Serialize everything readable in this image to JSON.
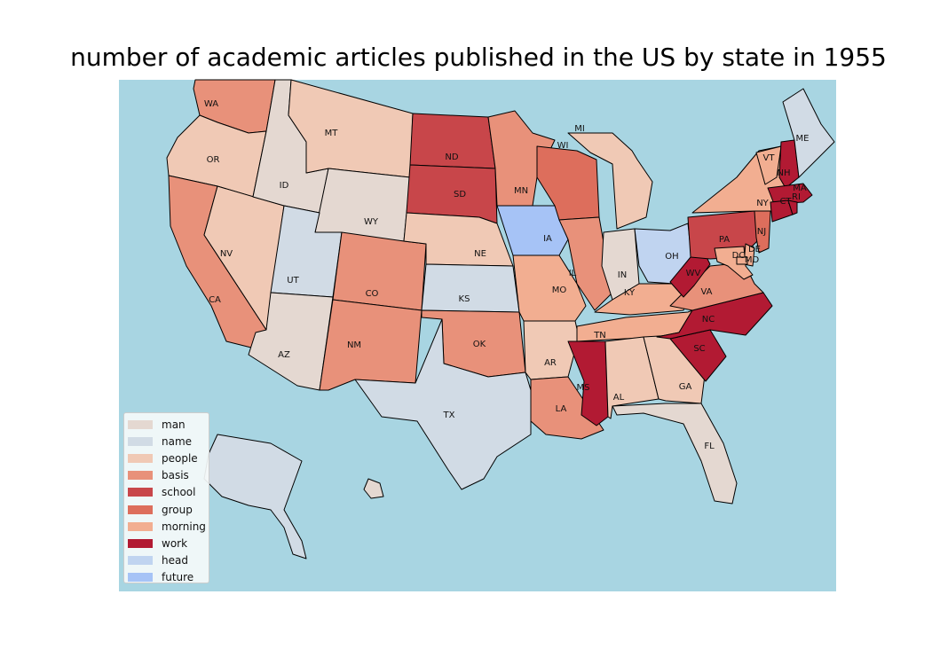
{
  "title": "number of academic articles published in the US by state in 1955",
  "colors": {
    "ocean": "#a8d5e2",
    "man": "#e4d8d1",
    "name": "#d1dbe5",
    "people": "#f0c9b5",
    "basis": "#e8917a",
    "school": "#c8464a",
    "group": "#dd6e5c",
    "morning": "#f2ae91",
    "work": "#b21a33",
    "head": "#c0d4f0",
    "future": "#a6c3f6"
  },
  "legend": [
    {
      "key": "man",
      "label": "man"
    },
    {
      "key": "name",
      "label": "name"
    },
    {
      "key": "people",
      "label": "people"
    },
    {
      "key": "basis",
      "label": "basis"
    },
    {
      "key": "school",
      "label": "school"
    },
    {
      "key": "group",
      "label": "group"
    },
    {
      "key": "morning",
      "label": "morning"
    },
    {
      "key": "work",
      "label": "work"
    },
    {
      "key": "head",
      "label": "head"
    },
    {
      "key": "future",
      "label": "future"
    }
  ],
  "states": [
    {
      "abbr": "WA",
      "category": "basis"
    },
    {
      "abbr": "OR",
      "category": "people"
    },
    {
      "abbr": "CA",
      "category": "basis"
    },
    {
      "abbr": "NV",
      "category": "people"
    },
    {
      "abbr": "ID",
      "category": "man"
    },
    {
      "abbr": "MT",
      "category": "people"
    },
    {
      "abbr": "WY",
      "category": "man"
    },
    {
      "abbr": "UT",
      "category": "name"
    },
    {
      "abbr": "AZ",
      "category": "man"
    },
    {
      "abbr": "CO",
      "category": "basis"
    },
    {
      "abbr": "NM",
      "category": "basis"
    },
    {
      "abbr": "ND",
      "category": "school"
    },
    {
      "abbr": "SD",
      "category": "school"
    },
    {
      "abbr": "NE",
      "category": "people"
    },
    {
      "abbr": "KS",
      "category": "name"
    },
    {
      "abbr": "OK",
      "category": "basis"
    },
    {
      "abbr": "TX",
      "category": "name"
    },
    {
      "abbr": "MN",
      "category": "basis"
    },
    {
      "abbr": "IA",
      "category": "future"
    },
    {
      "abbr": "MO",
      "category": "morning"
    },
    {
      "abbr": "AR",
      "category": "people"
    },
    {
      "abbr": "LA",
      "category": "basis"
    },
    {
      "abbr": "WI",
      "category": "group"
    },
    {
      "abbr": "IL",
      "category": "basis"
    },
    {
      "abbr": "MI",
      "category": "people"
    },
    {
      "abbr": "IN",
      "category": "man"
    },
    {
      "abbr": "OH",
      "category": "head"
    },
    {
      "abbr": "KY",
      "category": "morning"
    },
    {
      "abbr": "TN",
      "category": "morning"
    },
    {
      "abbr": "MS",
      "category": "work"
    },
    {
      "abbr": "AL",
      "category": "people"
    },
    {
      "abbr": "GA",
      "category": "people"
    },
    {
      "abbr": "FL",
      "category": "man"
    },
    {
      "abbr": "SC",
      "category": "work"
    },
    {
      "abbr": "NC",
      "category": "work"
    },
    {
      "abbr": "VA",
      "category": "basis"
    },
    {
      "abbr": "WV",
      "category": "work"
    },
    {
      "abbr": "PA",
      "category": "school"
    },
    {
      "abbr": "NY",
      "category": "morning"
    },
    {
      "abbr": "VT",
      "category": "morning"
    },
    {
      "abbr": "NH",
      "category": "work"
    },
    {
      "abbr": "ME",
      "category": "name"
    },
    {
      "abbr": "MA",
      "category": "work"
    },
    {
      "abbr": "CT",
      "category": "work"
    },
    {
      "abbr": "RI",
      "category": "work"
    },
    {
      "abbr": "NJ",
      "category": "group"
    },
    {
      "abbr": "DE",
      "category": "morning"
    },
    {
      "abbr": "MD",
      "category": "morning"
    },
    {
      "abbr": "DC",
      "category": "morning"
    },
    {
      "abbr": "AK",
      "category": "name"
    },
    {
      "abbr": "HI",
      "category": "man"
    }
  ]
}
